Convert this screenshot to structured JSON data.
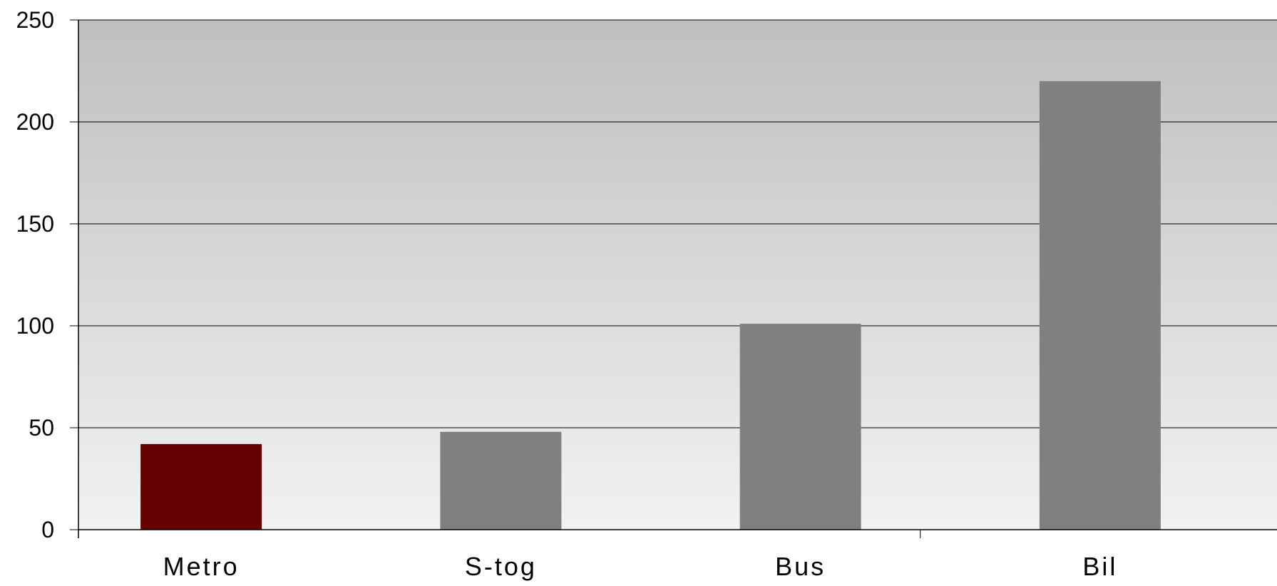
{
  "chart_data": {
    "type": "bar",
    "title": "",
    "xlabel": "",
    "ylabel": "",
    "categories": [
      "Metro",
      "S-tog",
      "Bus",
      "Bil"
    ],
    "values": [
      42,
      48,
      101,
      220
    ],
    "bar_colors": [
      "#660000",
      "#808080",
      "#808080",
      "#808080"
    ],
    "ylim": [
      0,
      250
    ],
    "yticks": [
      "0",
      "50",
      "100",
      "150",
      "200",
      "250"
    ],
    "grid": true,
    "legend": "none",
    "background_gradient": [
      "#bfbfbf",
      "#f2f2f2"
    ]
  }
}
